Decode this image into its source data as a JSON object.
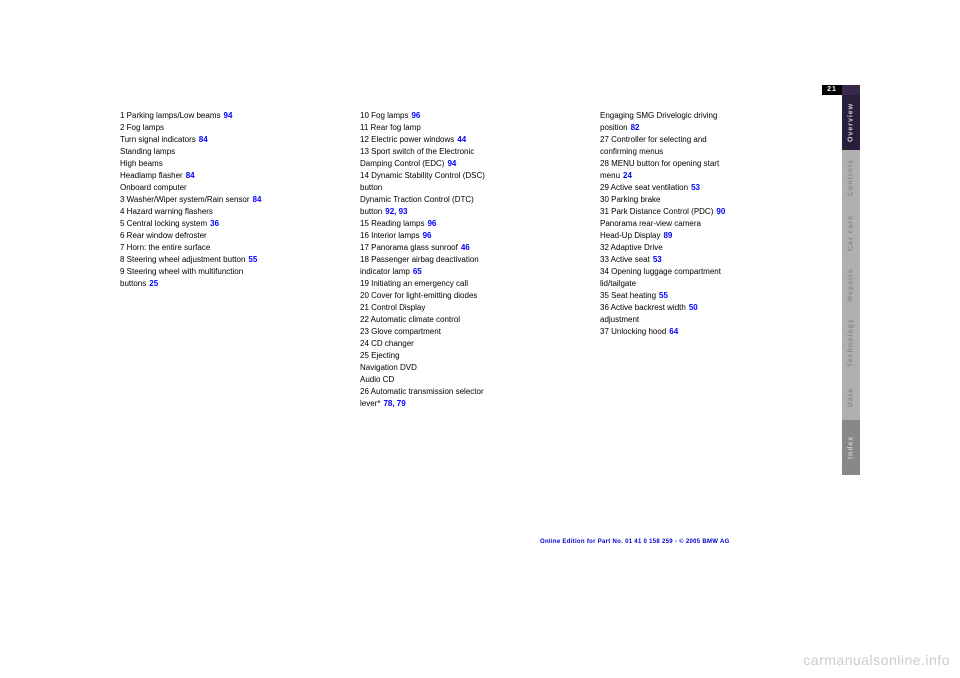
{
  "page_number": "21",
  "sidebar": {
    "tabs": [
      {
        "label": "Overview",
        "active": true
      },
      {
        "label": "Controls",
        "active": false
      },
      {
        "label": "Car care",
        "active": false
      },
      {
        "label": "Repairs",
        "active": false
      },
      {
        "label": "Technology",
        "active": false
      },
      {
        "label": "Data",
        "active": false
      },
      {
        "label": "Index",
        "active": false
      }
    ]
  },
  "columns": [
    {
      "items": [
        {
          "n": "1",
          "text": "Parking lamps/Low beams",
          "ref": "94"
        },
        {
          "n": "2",
          "text": "Fog lamps",
          "ref": ""
        },
        {
          "n": "",
          "text": "Turn signal indicators",
          "ref": "84"
        },
        {
          "n": "",
          "text": "Standing lamps",
          "ref": ""
        },
        {
          "n": "",
          "text": "High beams",
          "ref": ""
        },
        {
          "n": "",
          "text": "Headlamp flasher",
          "ref": "84"
        },
        {
          "n": "",
          "text": "Onboard computer",
          "ref": ""
        },
        {
          "n": "3",
          "text": "Washer/Wiper system/Rain sensor",
          "ref": "84"
        },
        {
          "n": "4",
          "text": "Hazard warning flashers",
          "ref": ""
        },
        {
          "n": "5",
          "text": "Central locking system",
          "ref": "36"
        },
        {
          "n": "6",
          "text": "Rear window defroster",
          "ref": ""
        },
        {
          "n": "7",
          "text": "Horn: the entire surface",
          "ref": ""
        },
        {
          "n": "8",
          "text": "Steering wheel adjustment button",
          "ref": "55"
        },
        {
          "n": "9",
          "text": "Steering wheel with multifunction",
          "ref": ""
        },
        {
          "n": "",
          "text": "buttons",
          "ref": "25"
        }
      ]
    },
    {
      "items": [
        {
          "n": "10",
          "text": "Fog lamps",
          "ref": "96"
        },
        {
          "n": "11",
          "text": "Rear fog lamp",
          "ref": ""
        },
        {
          "n": "12",
          "text": "Electric power windows",
          "ref": "44"
        },
        {
          "n": "13",
          "text": "Sport switch of the Electronic",
          "ref": ""
        },
        {
          "n": "",
          "text": "Damping Control (EDC)",
          "ref": "94"
        },
        {
          "n": "14",
          "text": "Dynamic Stability Control (DSC)",
          "ref": ""
        },
        {
          "n": "",
          "text": "button",
          "ref": ""
        },
        {
          "n": "",
          "text": "Dynamic Traction Control (DTC)",
          "ref": ""
        },
        {
          "n": "",
          "text": "button",
          "ref": "92, 93"
        },
        {
          "n": "15",
          "text": "Reading lamps",
          "ref": "96"
        },
        {
          "n": "16",
          "text": "Interior lamps",
          "ref": "96"
        },
        {
          "n": "17",
          "text": "Panorama glass sunroof",
          "ref": "46"
        },
        {
          "n": "18",
          "text": "Passenger airbag deactivation",
          "ref": ""
        },
        {
          "n": "",
          "text": "indicator lamp",
          "ref": "65"
        },
        {
          "n": "19",
          "text": "Initiating an emergency call",
          "ref": ""
        },
        {
          "n": "20",
          "text": "Cover for light-emitting diodes",
          "ref": ""
        },
        {
          "n": "21",
          "text": "Control Display",
          "ref": ""
        },
        {
          "n": "22",
          "text": "Automatic climate control",
          "ref": ""
        },
        {
          "n": "23",
          "text": "Glove compartment",
          "ref": ""
        },
        {
          "n": "24",
          "text": "CD changer",
          "ref": ""
        },
        {
          "n": "25",
          "text": "Ejecting",
          "ref": ""
        },
        {
          "n": "",
          "text": "Navigation DVD",
          "ref": ""
        },
        {
          "n": "",
          "text": "Audio CD",
          "ref": ""
        },
        {
          "n": "26",
          "text": "Automatic transmission selector",
          "ref": ""
        },
        {
          "n": "",
          "text": "lever*",
          "ref": "78, 79"
        }
      ]
    },
    {
      "items": [
        {
          "n": "",
          "text": "Engaging SMG Drivelogic driving",
          "ref": ""
        },
        {
          "n": "",
          "text": "position",
          "ref": "82"
        },
        {
          "n": "27",
          "text": "Controller for selecting and",
          "ref": ""
        },
        {
          "n": "",
          "text": "confirming menus",
          "ref": ""
        },
        {
          "n": "28",
          "text": "MENU button for opening start",
          "ref": ""
        },
        {
          "n": "",
          "text": "menu",
          "ref": "24"
        },
        {
          "n": "29",
          "text": "Active seat ventilation",
          "ref": "53"
        },
        {
          "n": "30",
          "text": "Parking brake",
          "ref": ""
        },
        {
          "n": "31",
          "text": "Park Distance Control (PDC)",
          "ref": "90"
        },
        {
          "n": "",
          "text": "Panorama rear-view camera",
          "ref": ""
        },
        {
          "n": "",
          "text": "Head-Up Display",
          "ref": "89"
        },
        {
          "n": "32",
          "text": "Adaptive Drive",
          "ref": ""
        },
        {
          "n": "33",
          "text": "Active seat",
          "ref": "53"
        },
        {
          "n": "34",
          "text": "Opening luggage compartment",
          "ref": ""
        },
        {
          "n": "",
          "text": "lid/tailgate",
          "ref": ""
        },
        {
          "n": "35",
          "text": "Seat heating",
          "ref": "55"
        },
        {
          "n": "36",
          "text": "Active backrest width",
          "ref": "50"
        },
        {
          "n": "",
          "text": "adjustment",
          "ref": ""
        },
        {
          "n": "37",
          "text": "Unlocking hood",
          "ref": "64"
        }
      ]
    }
  ],
  "footer": "Online Edition for Part No. 01 41 0 158 259 - © 2005 BMW AG",
  "watermark": "carmanualsonline.info"
}
